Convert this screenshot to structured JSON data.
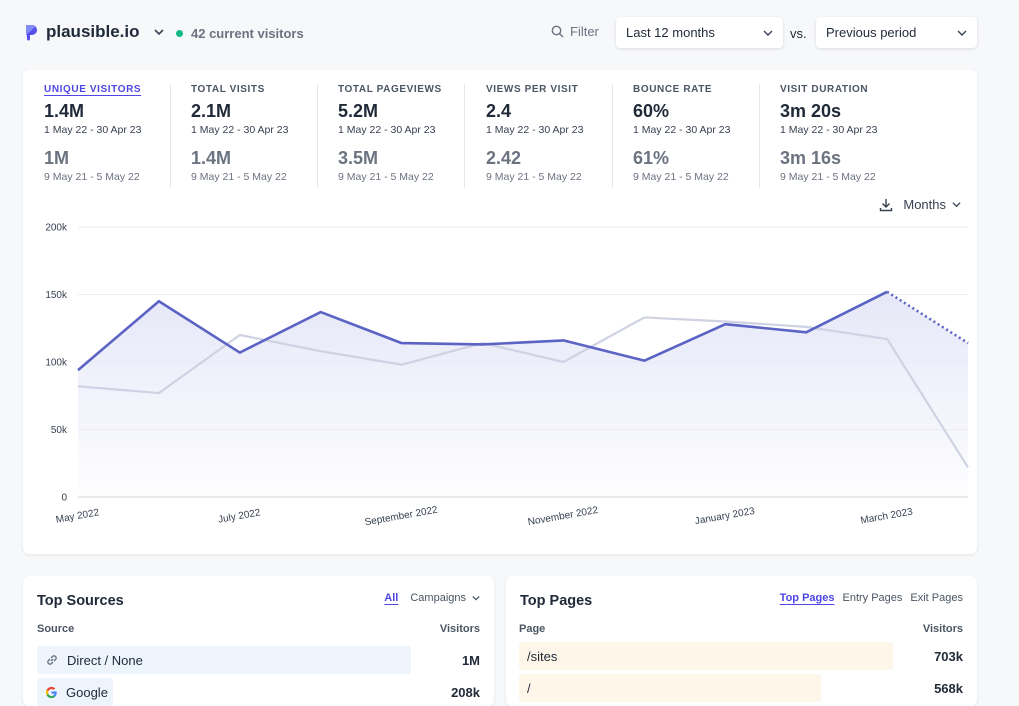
{
  "header": {
    "site": "plausible.io",
    "live_text": "42 current visitors",
    "filter_label": "Filter",
    "period": "Last 12 months",
    "vs": "vs.",
    "compare": "Previous period"
  },
  "stats": [
    {
      "label": "Unique visitors",
      "value": "1.4M",
      "range": "1 May 22 - 30 Apr 23",
      "prev": "1M",
      "prev_range": "9 May 21 - 5 May 22"
    },
    {
      "label": "Total visits",
      "value": "2.1M",
      "range": "1 May 22 - 30 Apr 23",
      "prev": "1.4M",
      "prev_range": "9 May 21 - 5 May 22"
    },
    {
      "label": "Total pageviews",
      "value": "5.2M",
      "range": "1 May 22 - 30 Apr 23",
      "prev": "3.5M",
      "prev_range": "9 May 21 - 5 May 22"
    },
    {
      "label": "Views per visit",
      "value": "2.4",
      "range": "1 May 22 - 30 Apr 23",
      "prev": "2.42",
      "prev_range": "9 May 21 - 5 May 22"
    },
    {
      "label": "Bounce rate",
      "value": "60%",
      "range": "1 May 22 - 30 Apr 23",
      "prev": "61%",
      "prev_range": "9 May 21 - 5 May 22"
    },
    {
      "label": "Visit duration",
      "value": "3m 20s",
      "range": "1 May 22 - 30 Apr 23",
      "prev": "3m 16s",
      "prev_range": "9 May 21 - 5 May 22"
    }
  ],
  "interval_label": "Months",
  "chart_data": {
    "type": "line",
    "x": [
      "May 2022",
      "Jun 2022",
      "Jul 2022",
      "Aug 2022",
      "Sep 2022",
      "Oct 2022",
      "Nov 2022",
      "Dec 2022",
      "Jan 2023",
      "Feb 2023",
      "Mar 2023",
      "Apr 2023"
    ],
    "x_tick_labels": [
      "May 2022",
      "July 2022",
      "September 2022",
      "November 2022",
      "January 2023",
      "March 2023"
    ],
    "y_ticks": [
      "200k",
      "150k",
      "100k",
      "50k",
      "0"
    ],
    "ylim": [
      0,
      200000
    ],
    "series": [
      {
        "values": [
          94000,
          145000,
          107000,
          137000,
          114000,
          113000,
          116000,
          101000,
          128000,
          122000,
          152000,
          114000
        ]
      },
      {
        "values": [
          82000,
          77000,
          120000,
          108000,
          98000,
          114000,
          100000,
          133000,
          130000,
          126000,
          117000,
          22000
        ]
      }
    ],
    "colors": {
      "current": "#5b63c4",
      "previous": "#cfd2e2",
      "fill": "#e4e6f7"
    },
    "grid": true
  },
  "sources": {
    "title": "Top Sources",
    "tabs": [
      "All",
      "Campaigns"
    ],
    "col_source": "Source",
    "col_visitors": "Visitors",
    "rows": [
      {
        "label": "Direct / None",
        "value": "1M",
        "icon": "link-icon",
        "fraction": 1.0
      },
      {
        "label": "Google",
        "value": "208k",
        "icon": "google-icon",
        "fraction": 0.2
      }
    ]
  },
  "pages": {
    "title": "Top Pages",
    "tabs": [
      "Top Pages",
      "Entry Pages",
      "Exit Pages"
    ],
    "col_page": "Page",
    "col_visitors": "Visitors",
    "rows": [
      {
        "label": "/sites",
        "value": "703k",
        "fraction": 1.0
      },
      {
        "label": "/",
        "value": "568k",
        "fraction": 0.81
      }
    ]
  }
}
